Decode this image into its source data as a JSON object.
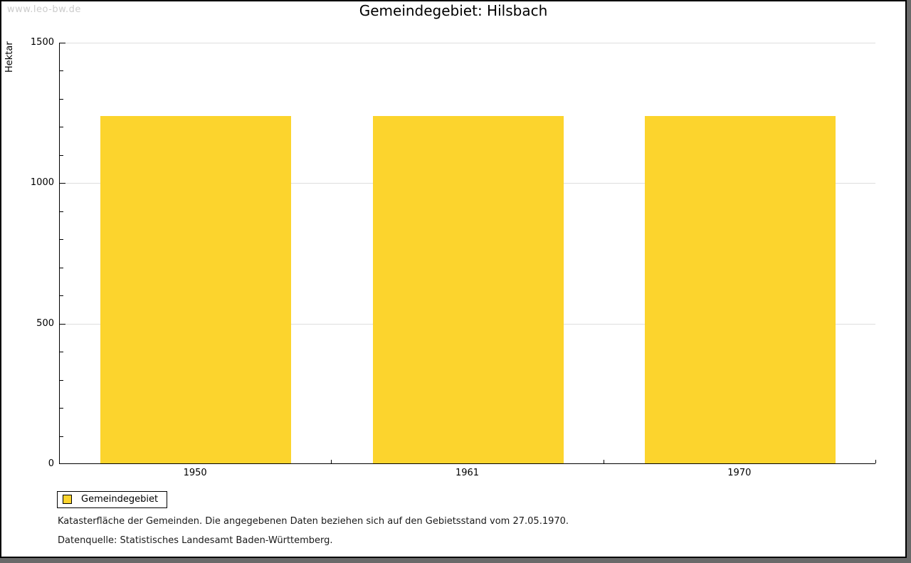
{
  "watermark": "www.leo-bw.de",
  "title": "Gemeindegebiet: Hilsbach",
  "chart_data": {
    "type": "bar",
    "title": "Gemeindegebiet: Hilsbach",
    "categories": [
      "1950",
      "1961",
      "1970"
    ],
    "series": [
      {
        "name": "Gemeindegebiet",
        "values": [
          1237,
          1237,
          1237
        ]
      }
    ],
    "ylabel": "Hektar",
    "xlabel": "",
    "ylim": [
      0,
      1500
    ],
    "ytick_major_interval": 500,
    "ytick_minor_interval": 100,
    "grid": true,
    "legend_position": "bottom-left",
    "bar_color": "#FCD42D",
    "grid_color": "#DEDEDE",
    "axis_color": "#000000",
    "bar_slot_fraction": 0.7
  },
  "legend": {
    "items": [
      {
        "label": "Gemeindegebiet",
        "color": "#FCD42D"
      }
    ]
  },
  "notes": {
    "line1": "Katasterfläche der Gemeinden. Die angegebenen Daten beziehen sich auf den Gebietsstand vom 27.05.1970.",
    "line2": "Datenquelle: Statistisches Landesamt Baden-Württemberg."
  }
}
